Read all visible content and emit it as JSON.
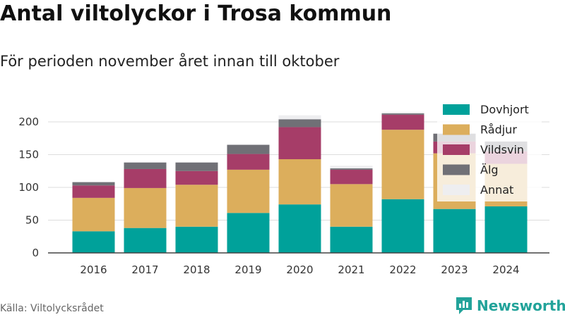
{
  "header": {
    "title": "Antal viltolyckor i Trosa kommun",
    "subtitle": "För perioden november året innan till oktober"
  },
  "footer": {
    "source": "Källa: Viltolycksrådet",
    "brand": "Newsworthy",
    "brand_icon": "bar-chart-logo-icon",
    "brand_color": "#22a39a"
  },
  "chart_data": {
    "type": "bar",
    "stacked": true,
    "title": "Antal viltolyckor i Trosa kommun",
    "subtitle": "För perioden november året innan till oktober",
    "categories": [
      "2016",
      "2017",
      "2018",
      "2019",
      "2020",
      "2021",
      "2022",
      "2023",
      "2024"
    ],
    "series": [
      {
        "name": "Dovhjort",
        "color": "#00a19a",
        "values": [
          33,
          38,
          40,
          61,
          74,
          40,
          82,
          67,
          71
        ]
      },
      {
        "name": "Rådjur",
        "color": "#dcae5c",
        "values": [
          51,
          61,
          64,
          66,
          69,
          65,
          106,
          85,
          65
        ]
      },
      {
        "name": "Vildsvin",
        "color": "#a63d68",
        "values": [
          19,
          29,
          21,
          24,
          49,
          22,
          23,
          18,
          19
        ]
      },
      {
        "name": "Älg",
        "color": "#707076",
        "values": [
          5,
          10,
          13,
          14,
          12,
          2,
          2,
          12,
          15
        ]
      },
      {
        "name": "Annat",
        "color": "#eeeef0",
        "values": [
          0,
          0,
          0,
          0,
          6,
          4,
          2,
          0,
          0
        ]
      }
    ],
    "yticks": [
      0,
      50,
      100,
      150,
      200
    ],
    "ylim": [
      0,
      225
    ],
    "grid": true,
    "legend_position": "top-right"
  }
}
